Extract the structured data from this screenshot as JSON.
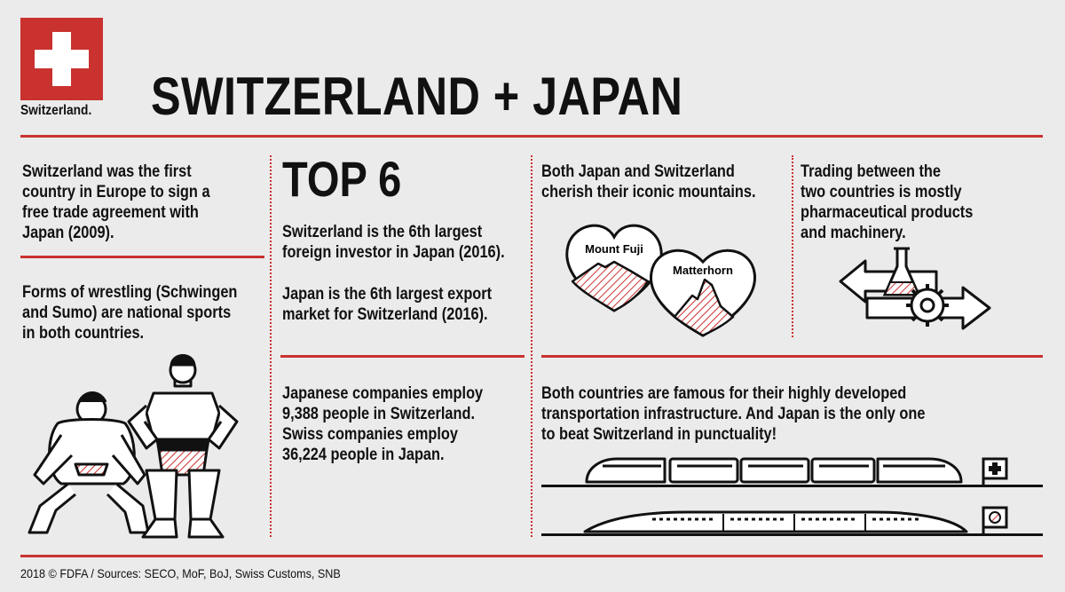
{
  "header": {
    "brand": "Switzerland.",
    "title": "SWITZERLAND + JAPAN"
  },
  "facts": {
    "trade_agreement": [
      "Switzerland was the first",
      "country in Europe to sign a",
      "free trade agreement with",
      "Japan (2009)."
    ],
    "wrestling": [
      "Forms of wrestling (Schwingen",
      "and Sumo) are national sports",
      "in both countries."
    ],
    "top_heading": "TOP 6",
    "investor": [
      "Switzerland is the 6th largest",
      "foreign investor in Japan (2016)."
    ],
    "export": [
      "Japan is the 6th largest export",
      "market for Switzerland (2016)."
    ],
    "employment": [
      "Japanese companies employ",
      "9,388 people in Switzerland.",
      "Swiss companies employ",
      "36,224 people in Japan."
    ],
    "mountains": [
      "Both Japan and Switzerland",
      "cherish their iconic mountains."
    ],
    "trading": [
      "Trading between the",
      "two countries is mostly",
      "pharmaceutical products",
      "and machinery."
    ],
    "transport": [
      "Both countries are famous for their highly developed",
      "transportation infrastructure. And Japan is the only one",
      "to beat Switzerland in punctuality!"
    ]
  },
  "illustrations": {
    "mount_fuji_label": "Mount Fuji",
    "matterhorn_label": "Matterhorn"
  },
  "footer": "2018 © FDFA / Sources: SECO, MoF, BoJ, Swiss Customs, SNB",
  "colors": {
    "accent": "#c9322f",
    "background": "#ebebeb",
    "text": "#111111"
  }
}
